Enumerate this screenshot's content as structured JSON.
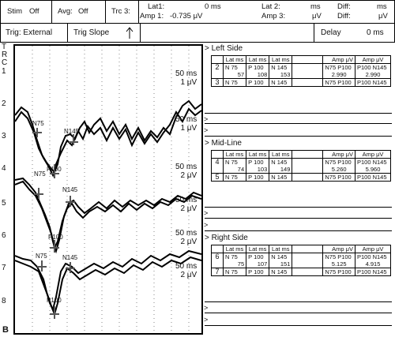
{
  "header": {
    "stim_label": "Stim",
    "stim_value": "Off",
    "avg_label": "Avg:",
    "avg_value": "Off",
    "trc_label": "Trc 3:",
    "lat1_label": "Lat1:",
    "lat1_value": "0 ms",
    "amp1_label": "Amp 1:",
    "amp1_value": "-0.735 μV",
    "lat2_label": "Lat 2:",
    "lat2_unit": "ms",
    "amp3_label": "Amp 3:",
    "amp3_unit": "μV",
    "diff1_label": "Diff:",
    "diff1_unit": "ms",
    "diff2_label": "Diff:",
    "diff2_unit": "μV",
    "trig_label": "Trig: External",
    "trig_slope_label": "Trig Slope",
    "trig_slope_icon": "up-arrow",
    "delay_label": "Delay",
    "delay_value": "0 ms"
  },
  "traces": {
    "left_letters": [
      "T",
      "R",
      "C"
    ],
    "numbers": [
      "1",
      "2",
      "3",
      "4",
      "5",
      "6",
      "7",
      "8"
    ],
    "scales": [
      {
        "time": "50 ms",
        "amp": "1 μV"
      },
      {
        "time": "50 ms",
        "amp": "1 μV"
      },
      {
        "time": "50 ms",
        "amp": "2 μV"
      },
      {
        "time": "50 ms",
        "amp": "2 μV"
      },
      {
        "time": "50 ms",
        "amp": "2 μV"
      },
      {
        "time": "50 ms",
        "amp": "2 μV"
      }
    ],
    "markers": {
      "n75": "N75",
      "p100": "P100",
      "n145": "N145"
    },
    "panel_label": "B"
  },
  "sections": {
    "left": {
      "title": "> Left Side",
      "header": [
        "Lat ms",
        "Lat ms",
        "Lat ms",
        "",
        "Amp μV",
        "Amp μV"
      ],
      "rows": [
        {
          "num": "2",
          "c1": "N 75",
          "v1": "57",
          "c2": "P 100",
          "v2": "108",
          "c3": "N 145",
          "v3": "153",
          "a1": "N75 P100",
          "a1v": "2.990",
          "a2": "P100 N145",
          "a2v": "2.990"
        },
        {
          "num": "3",
          "c1": "N 75",
          "v1": "",
          "c2": "P 100",
          "v2": "",
          "c3": "N 145",
          "v3": "",
          "a1": "N75 P100",
          "a1v": "",
          "a2": "P100 N145",
          "a2v": ""
        }
      ]
    },
    "mid": {
      "title": "> Mid-Line",
      "header": [
        "Lat ms",
        "Lat ms",
        "Lat ms",
        "",
        "Amp μV",
        "Amp μV"
      ],
      "rows": [
        {
          "num": "4",
          "c1": "N 75",
          "v1": "74",
          "c2": "P 100",
          "v2": "103",
          "c3": "N 145",
          "v3": "149",
          "a1": "N75 P100",
          "a1v": "5.260",
          "a2": "P100 N145",
          "a2v": "5.960"
        },
        {
          "num": "5",
          "c1": "N 75",
          "v1": "",
          "c2": "P 100",
          "v2": "",
          "c3": "N 145",
          "v3": "",
          "a1": "N75 P100",
          "a1v": "",
          "a2": "P100 N145",
          "a2v": ""
        }
      ]
    },
    "right": {
      "title": "> Right Side",
      "header": [
        "Lat ms",
        "Lat ms",
        "Lat ms",
        "",
        "Amp μV",
        "Amp μV"
      ],
      "rows": [
        {
          "num": "6",
          "c1": "N 75",
          "v1": "75",
          "c2": "P 100",
          "v2": "107",
          "c3": "N 145",
          "v3": "151",
          "a1": "N75 P100",
          "a1v": "5.125",
          "a2": "P100 N145",
          "a2v": "4.915"
        },
        {
          "num": "7",
          "c1": "N 75",
          "v1": "",
          "c2": "P 100",
          "v2": "",
          "c3": "N 145",
          "v3": "",
          "a1": "N75 P100",
          "a1v": "",
          "a2": "P100 N145",
          "a2v": ""
        }
      ]
    },
    "prompt": ">"
  }
}
